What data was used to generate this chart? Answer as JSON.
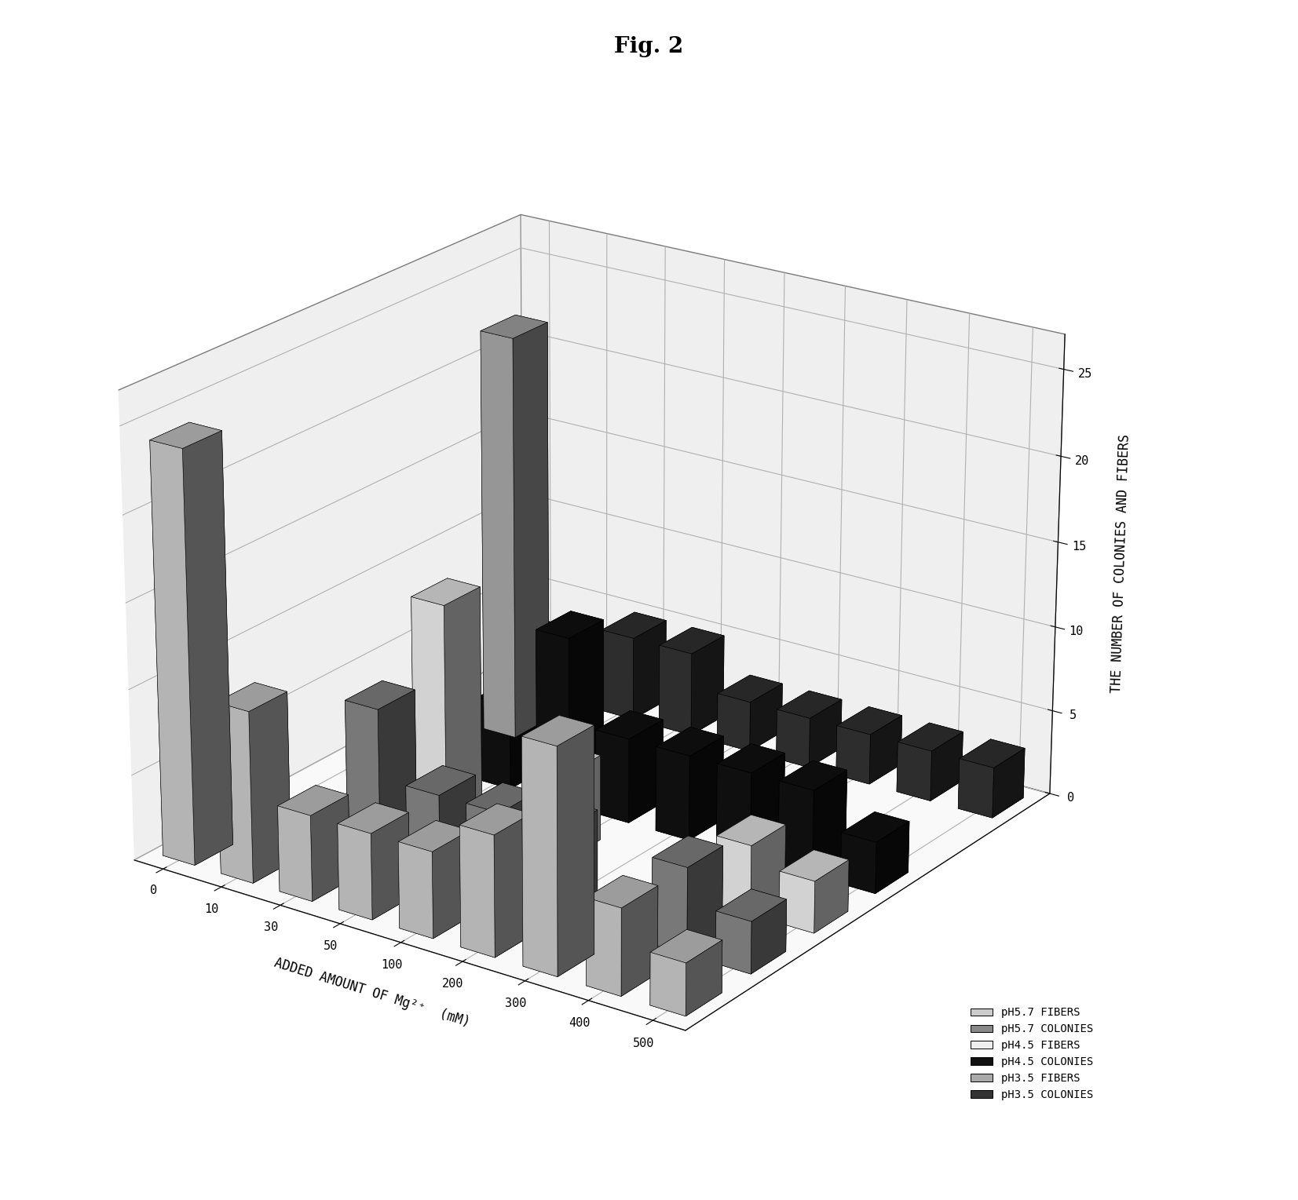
{
  "title": "Fig. 2",
  "xlabel": "ADDED AMOUNT OF Mg²⁺  (mM)",
  "ylabel": "THE NUMBER OF COLONIES AND FIBERS",
  "x_labels": [
    "0",
    "10",
    "30",
    "50",
    "100",
    "200",
    "300",
    "400",
    "500"
  ],
  "series_labels": [
    "pH5.7 FIBERS",
    "pH5.7 COLONIES",
    "pH4.5 FIBERS",
    "pH4.5 COLONIES",
    "pH3.5 FIBERS",
    "pH3.5 COLONIES"
  ],
  "ylim": [
    0,
    27
  ],
  "yticks": [
    0,
    5,
    10,
    15,
    20,
    25
  ],
  "data": {
    "pH5.7 FIBERS": [
      24,
      10,
      5,
      5,
      5,
      7,
      13,
      5,
      3
    ],
    "pH5.7 COLONIES": [
      0,
      0,
      9,
      5,
      5,
      5,
      0,
      5,
      3
    ],
    "pH4.5 FIBERS": [
      0,
      0,
      13,
      0,
      5,
      0,
      0,
      4,
      3
    ],
    "pH4.5 COLONIES": [
      0,
      0,
      5,
      10,
      5,
      5,
      5,
      5,
      3
    ],
    "pH3.5 FIBERS": [
      0,
      24,
      0,
      0,
      0,
      0,
      0,
      0,
      0
    ],
    "pH3.5 COLONIES": [
      3,
      3,
      5,
      5,
      3,
      3,
      3,
      3,
      3
    ]
  },
  "bar_colors": {
    "pH5.7 FIBERS": "#cccccc",
    "pH5.7 COLONIES": "#888888",
    "pH4.5 FIBERS": "#eeeeee",
    "pH4.5 COLONIES": "#111111",
    "pH3.5 FIBERS": "#aaaaaa",
    "pH3.5 COLONIES": "#333333"
  },
  "background_color": "#ffffff",
  "title_fontsize": 20,
  "axis_label_fontsize": 12,
  "tick_fontsize": 11,
  "legend_fontsize": 10,
  "elev": 22,
  "azim": -55
}
